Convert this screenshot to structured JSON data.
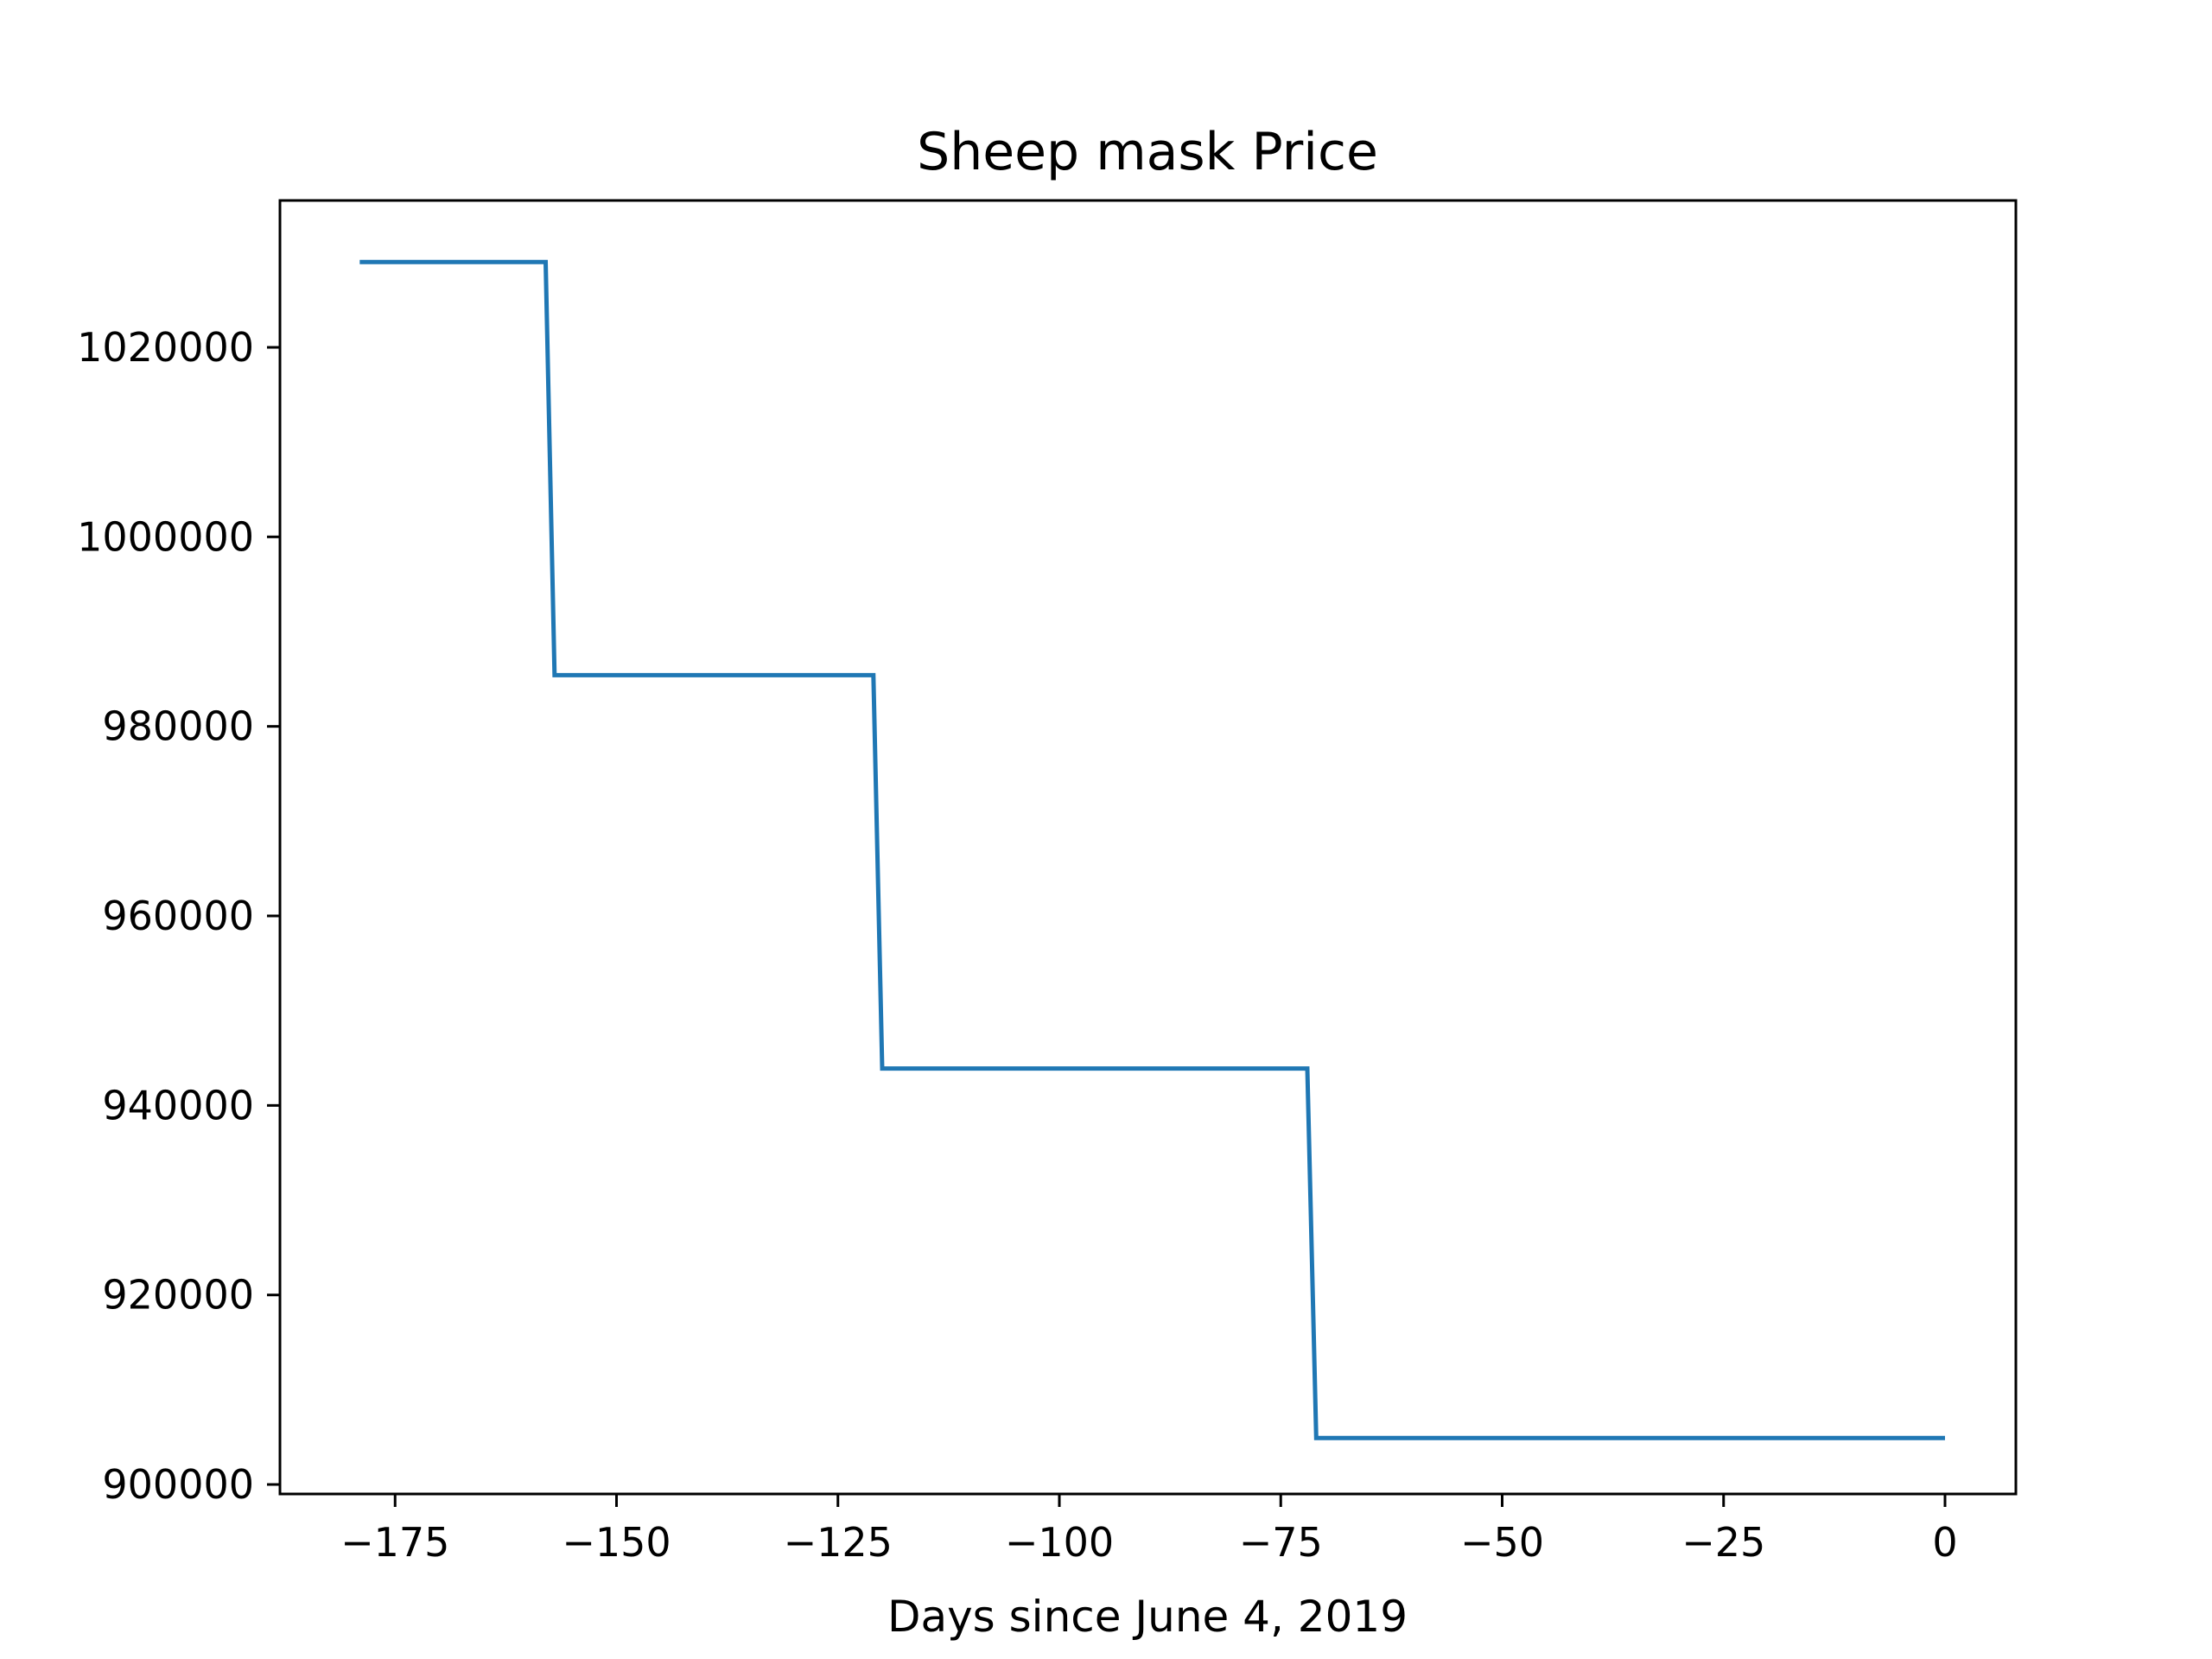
{
  "chart_data": {
    "type": "line",
    "title": "Sheep mask Price",
    "xlabel": "Days since June 4, 2019",
    "ylabel": "",
    "xlim": [
      -188,
      8
    ],
    "ylim": [
      899000,
      1035500
    ],
    "x_ticks": [
      -175,
      -150,
      -125,
      -100,
      -75,
      -50,
      -25,
      0
    ],
    "x_tick_labels": [
      "−175",
      "−150",
      "−125",
      "−100",
      "−75",
      "−50",
      "−25",
      "0"
    ],
    "y_ticks": [
      900000,
      920000,
      940000,
      960000,
      980000,
      1000000,
      1020000
    ],
    "y_tick_labels": [
      "900000",
      "920000",
      "940000",
      "960000",
      "980000",
      "1000000",
      "1020000"
    ],
    "grid": false,
    "legend": "none",
    "series": [
      {
        "color": "#1f77b4",
        "x": [
          -179,
          -158,
          -157,
          -121,
          -120,
          -72,
          -71,
          0
        ],
        "y": [
          1029000,
          1029000,
          985400,
          985400,
          943900,
          943900,
          904900,
          904900
        ]
      }
    ]
  }
}
